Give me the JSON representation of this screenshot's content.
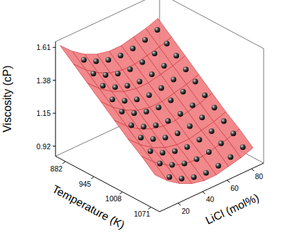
{
  "chart_data": {
    "type": "surface3d",
    "xlabel": "Temperature (K)",
    "ylabel": "LiCl (mol%)",
    "zlabel": "Viscosity (cP)",
    "xlim": [
      860,
      1090
    ],
    "ylim": [
      5,
      90
    ],
    "zlim": [
      0.85,
      1.65
    ],
    "xticks": [
      882,
      945,
      1008,
      1071
    ],
    "yticks": [
      20,
      40,
      60,
      80
    ],
    "zticks": [
      0.92,
      1.15,
      1.38,
      1.61
    ],
    "surface": {
      "color": "#e8383d",
      "x": [
        870,
        900,
        930,
        960,
        990,
        1020,
        1050,
        1080
      ],
      "y": [
        5,
        15,
        25,
        35,
        45,
        55,
        65,
        75,
        85
      ],
      "z": [
        [
          1.64,
          1.56,
          1.5,
          1.46,
          1.44,
          1.44,
          1.46,
          1.48,
          1.51
        ],
        [
          1.56,
          1.48,
          1.42,
          1.38,
          1.36,
          1.36,
          1.38,
          1.4,
          1.43
        ],
        [
          1.48,
          1.4,
          1.34,
          1.3,
          1.28,
          1.28,
          1.3,
          1.32,
          1.35
        ],
        [
          1.4,
          1.32,
          1.26,
          1.22,
          1.2,
          1.2,
          1.22,
          1.24,
          1.27
        ],
        [
          1.32,
          1.24,
          1.18,
          1.14,
          1.12,
          1.12,
          1.14,
          1.16,
          1.19
        ],
        [
          1.24,
          1.16,
          1.1,
          1.06,
          1.04,
          1.04,
          1.06,
          1.08,
          1.11
        ],
        [
          1.17,
          1.09,
          1.03,
          0.99,
          0.97,
          0.97,
          0.99,
          1.01,
          1.04
        ],
        [
          1.09,
          1.01,
          0.95,
          0.91,
          0.89,
          0.89,
          0.91,
          0.93,
          0.96
        ]
      ]
    },
    "points": {
      "color": "#000000",
      "marker": "sphere",
      "x": [
        882,
        903,
        924,
        945,
        966,
        987,
        1008,
        1029,
        1050,
        1071
      ],
      "y": [
        20,
        30,
        40,
        50,
        60,
        70,
        80
      ],
      "z": [
        [
          1.5,
          1.45,
          1.42,
          1.41,
          1.42,
          1.44,
          1.47
        ],
        [
          1.44,
          1.39,
          1.36,
          1.35,
          1.36,
          1.38,
          1.41
        ],
        [
          1.39,
          1.34,
          1.31,
          1.3,
          1.31,
          1.33,
          1.36
        ],
        [
          1.33,
          1.28,
          1.25,
          1.24,
          1.25,
          1.27,
          1.3
        ],
        [
          1.28,
          1.23,
          1.2,
          1.19,
          1.2,
          1.22,
          1.25
        ],
        [
          1.22,
          1.17,
          1.14,
          1.13,
          1.14,
          1.16,
          1.19
        ],
        [
          1.17,
          1.12,
          1.09,
          1.08,
          1.09,
          1.11,
          1.14
        ],
        [
          1.11,
          1.06,
          1.03,
          1.02,
          1.03,
          1.05,
          1.08
        ],
        [
          1.06,
          1.01,
          0.98,
          0.97,
          0.98,
          1.0,
          1.03
        ],
        [
          1.0,
          0.95,
          0.92,
          0.91,
          0.92,
          0.94,
          0.97
        ]
      ]
    }
  }
}
